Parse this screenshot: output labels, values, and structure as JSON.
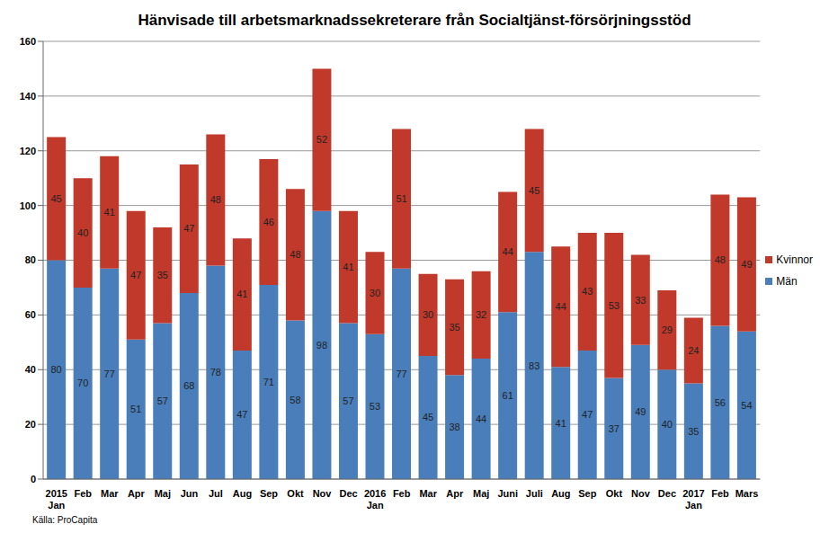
{
  "chart_data": {
    "type": "bar",
    "title": "Hänvisade till arbetsmarknadssekreterare från Socialtjänst-försörjningsstöd",
    "source": "Källa: ProCapita",
    "categories": [
      "2015 Jan",
      "Feb",
      "Mar",
      "Apr",
      "Maj",
      "Jun",
      "Jul",
      "Aug",
      "Sep",
      "Okt",
      "Nov",
      "Dec",
      "2016 Jan",
      "Feb",
      "Mar",
      "Apr",
      "Maj",
      "Juni",
      "Juli",
      "Aug",
      "Sep",
      "Okt",
      "Nov",
      "Dec",
      "2017 Jan",
      "Feb",
      "Mars"
    ],
    "series": [
      {
        "name": "Män",
        "color": "#4a7ebb",
        "values": [
          80,
          70,
          77,
          51,
          57,
          68,
          78,
          47,
          71,
          58,
          98,
          57,
          53,
          77,
          45,
          38,
          44,
          61,
          83,
          41,
          47,
          37,
          49,
          40,
          35,
          56,
          54
        ]
      },
      {
        "name": "Kvinnor",
        "color": "#c0392b",
        "values": [
          45,
          40,
          41,
          47,
          35,
          47,
          48,
          41,
          46,
          48,
          52,
          41,
          30,
          51,
          30,
          35,
          32,
          44,
          45,
          44,
          43,
          53,
          33,
          29,
          24,
          48,
          49
        ]
      }
    ],
    "ylim": [
      0,
      160
    ],
    "yticks": [
      0,
      20,
      40,
      60,
      80,
      100,
      120,
      140,
      160
    ],
    "grid": true,
    "stacked": true,
    "data_labels": true,
    "legend": "right"
  }
}
